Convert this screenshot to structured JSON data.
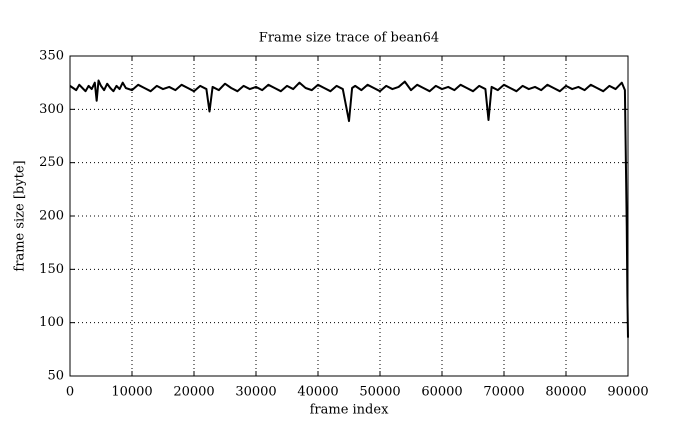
{
  "chart_data": {
    "type": "line",
    "title": "Frame size trace of bean64",
    "xlabel": "frame index",
    "ylabel": "frame size [byte]",
    "x": [
      0,
      500,
      1000,
      1500,
      2000,
      2500,
      3000,
      3500,
      4000,
      4300,
      4600,
      5000,
      5500,
      6000,
      6500,
      7000,
      7500,
      8000,
      8500,
      9000,
      10000,
      11000,
      12000,
      13000,
      14000,
      15000,
      16000,
      17000,
      18000,
      19000,
      20000,
      21000,
      22000,
      22500,
      23000,
      24000,
      25000,
      26000,
      27000,
      28000,
      29000,
      30000,
      31000,
      32000,
      33000,
      34000,
      35000,
      36000,
      37000,
      38000,
      39000,
      40000,
      41000,
      42000,
      43000,
      44000,
      45000,
      45500,
      46000,
      47000,
      48000,
      49000,
      50000,
      51000,
      52000,
      53000,
      54000,
      55000,
      56000,
      57000,
      58000,
      59000,
      60000,
      61000,
      62000,
      63000,
      64000,
      65000,
      66000,
      67000,
      67500,
      68000,
      69000,
      70000,
      71000,
      72000,
      73000,
      74000,
      75000,
      76000,
      77000,
      78000,
      79000,
      80000,
      81000,
      82000,
      83000,
      84000,
      85000,
      86000,
      87000,
      88000,
      89000,
      89500,
      89800,
      89900,
      90000
    ],
    "values": [
      322,
      320,
      318,
      323,
      320,
      317,
      322,
      319,
      325,
      308,
      327,
      322,
      318,
      324,
      320,
      317,
      322,
      319,
      325,
      320,
      318,
      323,
      320,
      317,
      322,
      319,
      321,
      318,
      323,
      320,
      317,
      322,
      319,
      298,
      321,
      318,
      324,
      320,
      317,
      322,
      319,
      321,
      318,
      323,
      320,
      317,
      322,
      319,
      325,
      320,
      318,
      323,
      320,
      317,
      322,
      319,
      289,
      320,
      322,
      318,
      323,
      320,
      317,
      322,
      319,
      321,
      326,
      318,
      323,
      320,
      317,
      322,
      319,
      321,
      318,
      323,
      320,
      317,
      322,
      319,
      290,
      321,
      318,
      323,
      320,
      317,
      322,
      319,
      321,
      318,
      323,
      320,
      317,
      322,
      319,
      321,
      318,
      323,
      320,
      317,
      322,
      319,
      325,
      318,
      190,
      126,
      86
    ],
    "color": "#000000",
    "xlim": [
      0,
      90000
    ],
    "xticks": [
      0,
      10000,
      20000,
      30000,
      40000,
      50000,
      60000,
      70000,
      80000,
      90000
    ],
    "ylim": [
      50,
      350
    ],
    "yticks": [
      50,
      100,
      150,
      200,
      250,
      300,
      350
    ],
    "grid": true
  }
}
